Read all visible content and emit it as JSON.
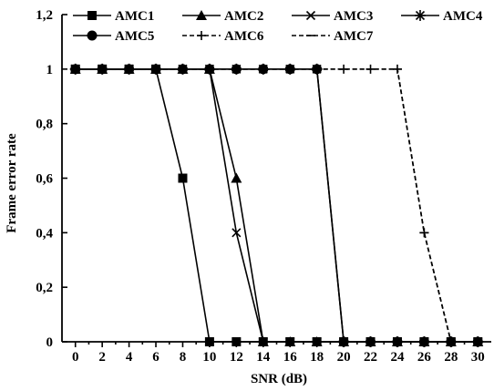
{
  "chart_data": {
    "type": "line",
    "title": "",
    "xlabel": "SNR (dB)",
    "ylabel": "Frame error rate",
    "xlim": [
      -1,
      31
    ],
    "ylim": [
      0,
      1.2
    ],
    "x_ticks": [
      0,
      2,
      4,
      6,
      8,
      10,
      12,
      14,
      16,
      18,
      20,
      22,
      24,
      26,
      28,
      30
    ],
    "y_ticks": [
      0,
      0.2,
      0.4,
      0.6,
      0.8,
      1,
      1.2
    ],
    "y_tick_labels": [
      "0",
      "0,2",
      "0,4",
      "0,6",
      "0,8",
      "1",
      "1,2"
    ],
    "grid": false,
    "legend_position": "top",
    "series": [
      {
        "name": "AMC1",
        "marker": "square",
        "line": "solid",
        "x": [
          0,
          2,
          4,
          6,
          8,
          10,
          12,
          14,
          16,
          18,
          20,
          22,
          24,
          26,
          28,
          30
        ],
        "y": [
          1,
          1,
          1,
          1,
          0.6,
          0,
          0,
          0,
          0,
          0,
          0,
          0,
          0,
          0,
          0,
          0
        ]
      },
      {
        "name": "AMC2",
        "marker": "triangle",
        "line": "solid",
        "x": [
          0,
          2,
          4,
          6,
          8,
          10,
          12,
          14,
          16,
          18,
          20,
          22,
          24,
          26,
          28,
          30
        ],
        "y": [
          1,
          1,
          1,
          1,
          1,
          1,
          0.6,
          0,
          0,
          0,
          0,
          0,
          0,
          0,
          0,
          0
        ]
      },
      {
        "name": "AMC3",
        "marker": "x",
        "line": "solid",
        "x": [
          0,
          2,
          4,
          6,
          8,
          10,
          12,
          14,
          16,
          18,
          20,
          22,
          24,
          26,
          28,
          30
        ],
        "y": [
          1,
          1,
          1,
          1,
          1,
          1,
          0.4,
          0,
          0,
          0,
          0,
          0,
          0,
          0,
          0,
          0
        ]
      },
      {
        "name": "AMC4",
        "marker": "asterisk",
        "line": "solid",
        "x": [
          0,
          2,
          4,
          6,
          8,
          10,
          12,
          14,
          16,
          18,
          20,
          22,
          24,
          26,
          28,
          30
        ],
        "y": [
          1,
          1,
          1,
          1,
          1,
          1,
          1,
          1,
          1,
          1,
          0,
          0,
          0,
          0,
          0,
          0
        ]
      },
      {
        "name": "AMC5",
        "marker": "circle",
        "line": "solid",
        "x": [
          0,
          2,
          4,
          6,
          8,
          10,
          12,
          14,
          16,
          18,
          20,
          22,
          24,
          26,
          28,
          30
        ],
        "y": [
          1,
          1,
          1,
          1,
          1,
          1,
          1,
          1,
          1,
          1,
          0,
          0,
          0,
          0,
          0,
          0
        ]
      },
      {
        "name": "AMC6",
        "marker": "plus",
        "line": "dashed",
        "x": [
          0,
          2,
          4,
          6,
          8,
          10,
          12,
          14,
          16,
          18,
          20,
          22,
          24,
          26,
          28,
          30
        ],
        "y": [
          1,
          1,
          1,
          1,
          1,
          1,
          1,
          1,
          1,
          1,
          1,
          1,
          1,
          0.4,
          0,
          0
        ]
      },
      {
        "name": "AMC7",
        "marker": "dash",
        "line": "dashed",
        "x": [
          0,
          2,
          4,
          6,
          8,
          10,
          12,
          14,
          16,
          18,
          20,
          22,
          24,
          26,
          28,
          30
        ],
        "y": [
          1,
          1,
          1,
          1,
          1,
          1,
          1,
          1,
          1,
          1,
          1,
          1,
          1,
          0.4,
          0,
          0
        ]
      }
    ]
  }
}
